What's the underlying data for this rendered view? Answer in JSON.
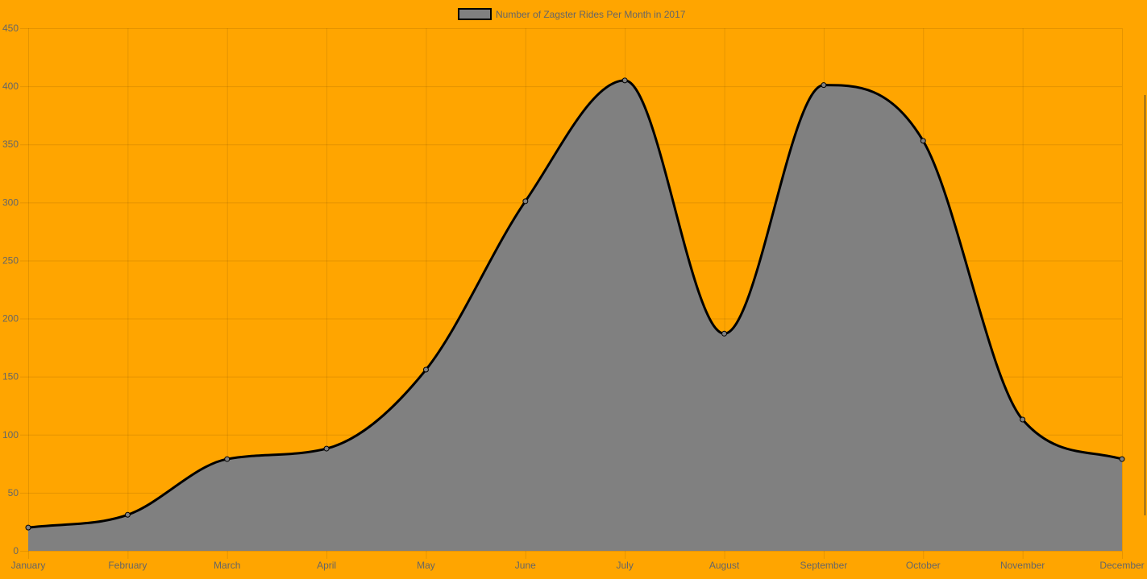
{
  "chart_data": {
    "type": "area",
    "categories": [
      "January",
      "February",
      "March",
      "April",
      "May",
      "June",
      "July",
      "August",
      "September",
      "October",
      "November",
      "December"
    ],
    "series": [
      {
        "name": "Number of Zagster Rides Per Month in 2017",
        "values": [
          20,
          31,
          79,
          88,
          156,
          301,
          405,
          187,
          401,
          353,
          113,
          79
        ]
      }
    ],
    "ylim": [
      0,
      450
    ],
    "yticks": [
      0,
      50,
      100,
      150,
      200,
      250,
      300,
      350,
      400,
      450
    ],
    "grid": true,
    "legend_position": "top-center",
    "smooth": true,
    "colors": {
      "background": "#FFA500",
      "fill": "#808080",
      "line": "#000000",
      "grid": "rgba(0,0,0,0.1)",
      "text": "#666666"
    }
  }
}
